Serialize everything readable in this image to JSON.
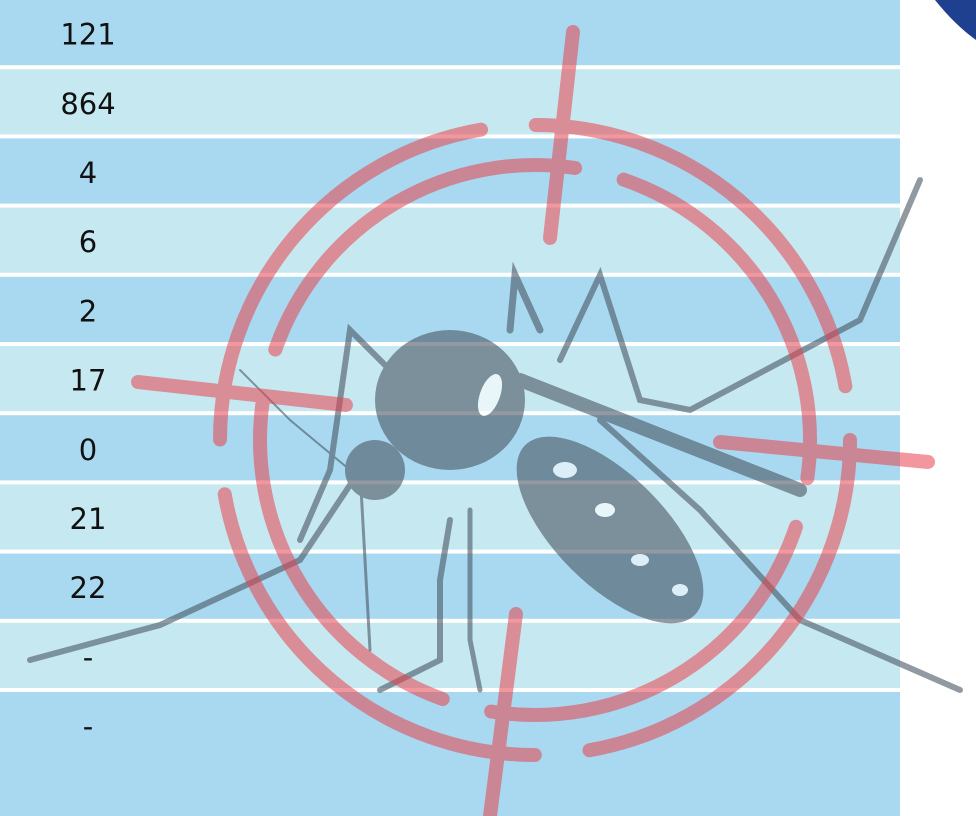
{
  "table": {
    "rows": [
      [
        121
      ],
      [
        864
      ],
      [
        4
      ],
      [
        6
      ],
      [
        2
      ],
      [
        17
      ],
      [
        0
      ],
      [
        21
      ],
      [
        22
      ],
      [
        "-"
      ],
      [
        "-"
      ]
    ]
  }
}
